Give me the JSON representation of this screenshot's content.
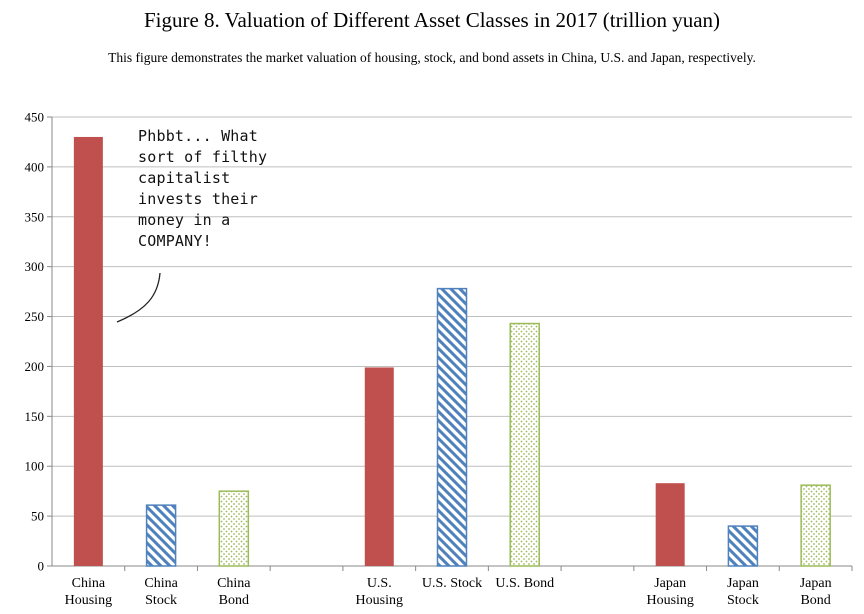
{
  "title": "Figure 8. Valuation of Different Asset Classes in 2017 (trillion yuan)",
  "subtitle": "This figure demonstrates the market valuation of housing, stock, and bond assets in China, U.S. and Japan, respectively.",
  "annotation": "Phbbt... What\nsort of filthy\ncapitalist\ninvests their\nmoney in a\nCOMPANY!",
  "colors": {
    "housing": "#c0504d",
    "stock": "#4f81bd",
    "bond": "#9bbb59",
    "grid": "#bfbfbf",
    "axis": "#888888"
  },
  "chart_data": {
    "type": "bar",
    "title": "Figure 8. Valuation of Different Asset Classes in 2017 (trillion yuan)",
    "ylim": [
      0,
      450
    ],
    "yticks": [
      0,
      50,
      100,
      150,
      200,
      250,
      300,
      350,
      400,
      450
    ],
    "grid": true,
    "bars": [
      {
        "label": [
          "China",
          "Housing"
        ],
        "value": 430,
        "style": "housing"
      },
      {
        "label": [
          "China",
          "Stock"
        ],
        "value": 61,
        "style": "stock"
      },
      {
        "label": [
          "China",
          "Bond"
        ],
        "value": 75,
        "style": "bond"
      },
      {
        "label": [],
        "value": null,
        "style": "gap"
      },
      {
        "label": [
          "U.S.",
          "Housing"
        ],
        "value": 199,
        "style": "housing"
      },
      {
        "label": [
          "U.S. Stock"
        ],
        "value": 278,
        "style": "stock"
      },
      {
        "label": [
          "U.S. Bond"
        ],
        "value": 243,
        "style": "bond"
      },
      {
        "label": [],
        "value": null,
        "style": "gap"
      },
      {
        "label": [
          "Japan",
          "Housing"
        ],
        "value": 83,
        "style": "housing"
      },
      {
        "label": [
          "Japan",
          "Stock"
        ],
        "value": 40,
        "style": "stock"
      },
      {
        "label": [
          "Japan",
          "Bond"
        ],
        "value": 81,
        "style": "bond"
      }
    ]
  }
}
